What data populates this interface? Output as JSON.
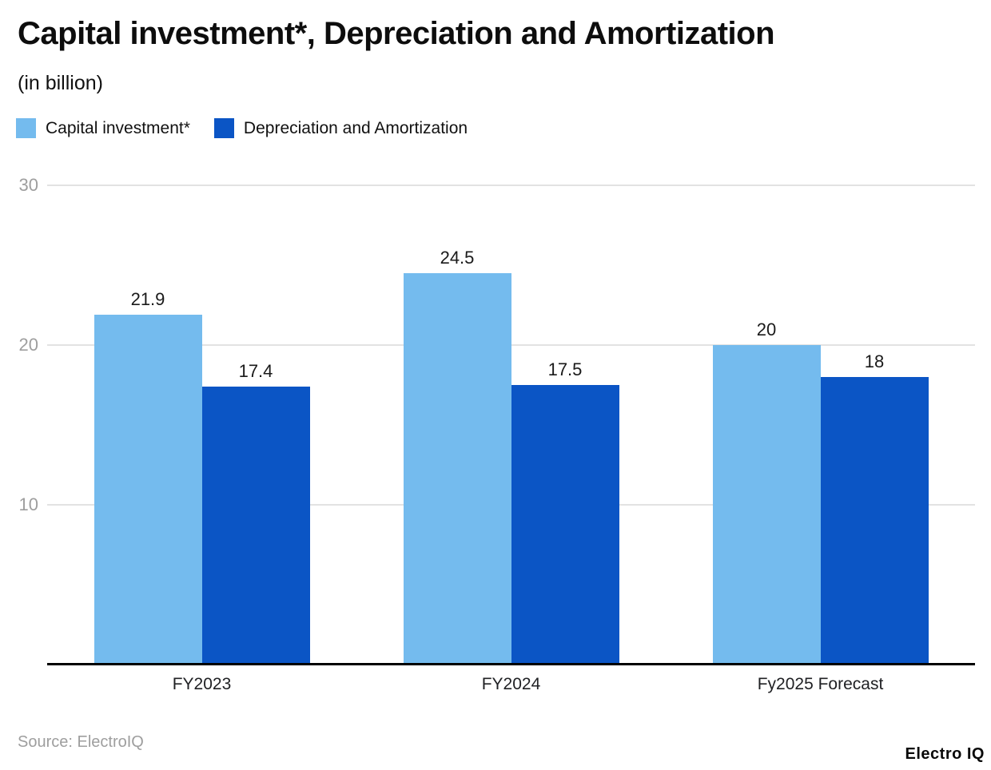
{
  "header": {
    "title": "Capital investment*, Depreciation and Amortization",
    "subtitle": "(in billion)"
  },
  "legend": {
    "items": [
      {
        "label": "Capital investment*",
        "color": "#74BBEE"
      },
      {
        "label": "Depreciation and Amortization",
        "color": "#0B55C5"
      }
    ]
  },
  "chart_data": {
    "type": "bar",
    "title": "Capital investment*, Depreciation and Amortization",
    "subtitle": "(in billion)",
    "categories": [
      "FY2023",
      "FY2024",
      "Fy2025 Forecast"
    ],
    "series": [
      {
        "name": "Capital investment*",
        "color": "#74BBEE",
        "values": [
          21.9,
          24.5,
          20
        ],
        "labels": [
          "21.9",
          "24.5",
          "20"
        ]
      },
      {
        "name": "Depreciation and Amortization",
        "color": "#0B55C5",
        "values": [
          17.4,
          17.5,
          18
        ],
        "labels": [
          "17.4",
          "17.5",
          "18"
        ]
      }
    ],
    "xlabel": "",
    "ylabel": "",
    "yticks": [
      10,
      20,
      30
    ],
    "ylim": [
      0,
      30
    ],
    "grid": "horizontal-gridlines-behind-bars",
    "legend_position": "top-left",
    "value_labels_shown": true
  },
  "footer": {
    "source": "Source: ElectroIQ",
    "brand": "Electro IQ"
  },
  "colors": {
    "series_light": "#74BBEE",
    "series_dark": "#0B55C5",
    "gridline": "#e2e2e2",
    "axis": "#000000",
    "tick_text": "#9e9e9e",
    "text": "#0d0d0d",
    "background": "#ffffff"
  }
}
